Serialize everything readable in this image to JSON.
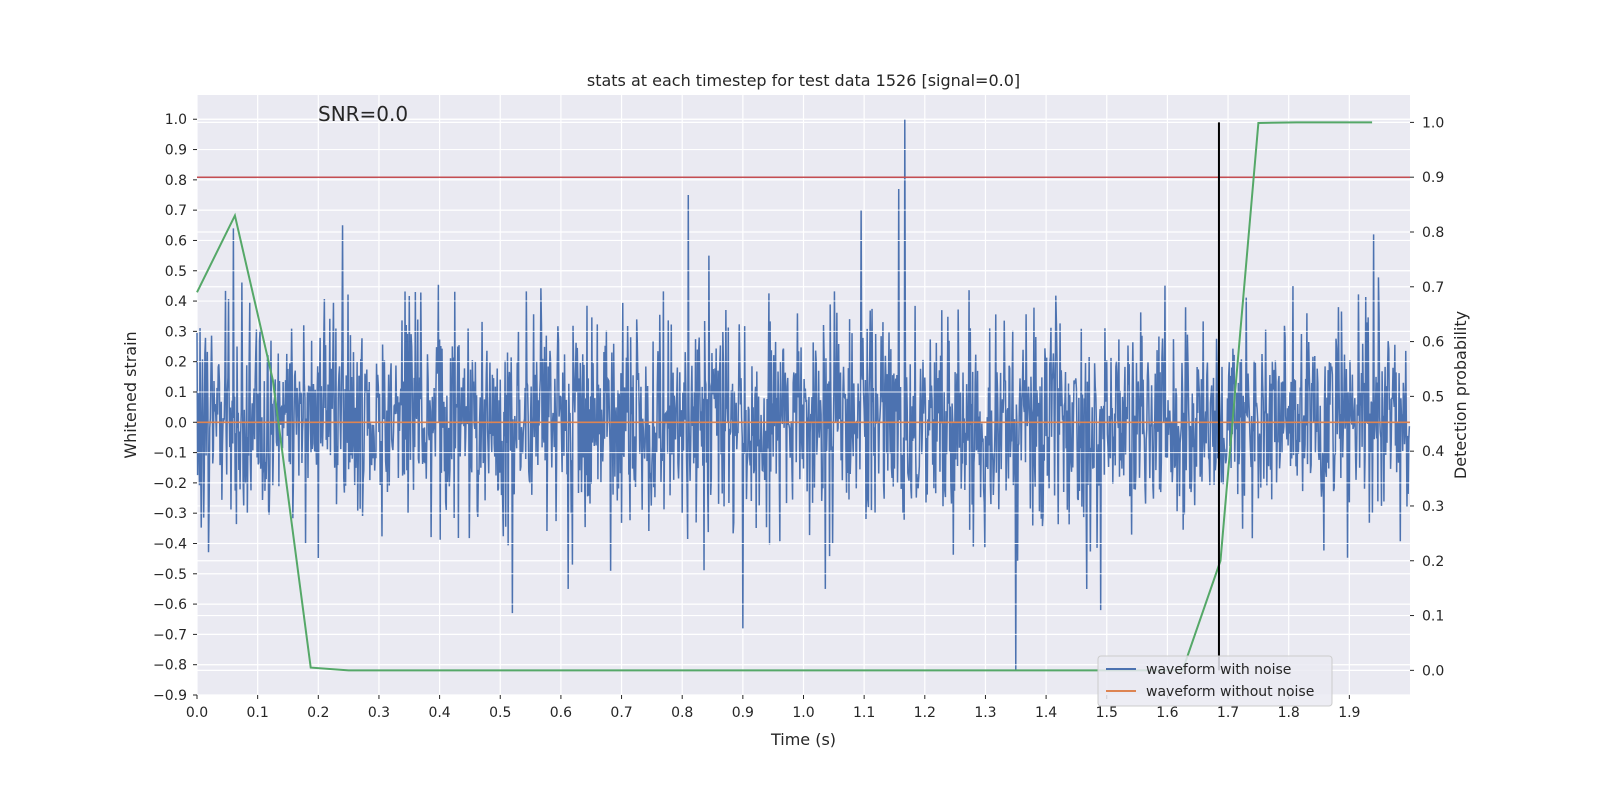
{
  "chart_data": {
    "type": "line",
    "title": "stats at each timestep for test data 1526 [signal=0.0]",
    "annotation": "SNR=0.0",
    "xlabel": "Time (s)",
    "ylabel": "Whitened strain",
    "y2label": "Detection probability",
    "xlim": [
      0.0,
      2.0
    ],
    "ylim": [
      -0.9,
      1.08
    ],
    "y2lim": [
      -0.045,
      1.05
    ],
    "grid": true,
    "legend_position": "lower-right",
    "x_ticks": [
      "0.0",
      "0.1",
      "0.2",
      "0.3",
      "0.4",
      "0.5",
      "0.6",
      "0.7",
      "0.8",
      "0.9",
      "1.0",
      "1.1",
      "1.2",
      "1.3",
      "1.4",
      "1.5",
      "1.6",
      "1.7",
      "1.8",
      "1.9"
    ],
    "y_ticks": [
      "1.0",
      "0.9",
      "0.8",
      "0.7",
      "0.6",
      "0.5",
      "0.4",
      "0.3",
      "0.2",
      "0.1",
      "0.0",
      "−0.1",
      "−0.2",
      "−0.3",
      "−0.4",
      "−0.5",
      "−0.6",
      "−0.7",
      "−0.8",
      "−0.9"
    ],
    "y2_ticks": [
      "1.0",
      "0.9",
      "0.8",
      "0.7",
      "0.6",
      "0.5",
      "0.4",
      "0.3",
      "0.2",
      "0.1",
      "0.0"
    ],
    "series": [
      {
        "name": "waveform with noise",
        "color": "#4c72b0",
        "sample_count": 2000,
        "seed": 1526,
        "amplitude_sd": 0.17,
        "peaks": [
          {
            "x": 1.167,
            "y": 1.0
          },
          {
            "x": 1.35,
            "y": -0.82
          },
          {
            "x": 0.81,
            "y": 0.75
          },
          {
            "x": 1.157,
            "y": 0.77
          },
          {
            "x": 0.9,
            "y": -0.68
          },
          {
            "x": 1.095,
            "y": 0.7
          },
          {
            "x": 0.52,
            "y": -0.63
          },
          {
            "x": 0.06,
            "y": 0.64
          },
          {
            "x": 1.49,
            "y": -0.62
          },
          {
            "x": 1.94,
            "y": 0.62
          },
          {
            "x": 0.24,
            "y": 0.65
          }
        ]
      },
      {
        "name": "waveform without noise",
        "color": "#dd8452",
        "x": [
          0.0,
          2.0
        ],
        "y": [
          0.0,
          0.0
        ]
      },
      {
        "name": "detection probability",
        "color": "#55a868",
        "axis": "right",
        "x": [
          0.0,
          0.0625,
          0.125,
          0.1875,
          0.25,
          0.3125,
          0.375,
          0.4375,
          0.5,
          0.5625,
          0.625,
          0.6875,
          0.75,
          0.8125,
          0.875,
          0.9375,
          1.0,
          1.0625,
          1.125,
          1.1875,
          1.25,
          1.3125,
          1.375,
          1.4375,
          1.5,
          1.5625,
          1.625,
          1.6875,
          1.75,
          1.8125,
          1.875,
          1.9375
        ],
        "y": [
          0.69,
          0.83,
          0.53,
          0.005,
          0.0,
          0.0,
          0.0,
          0.0,
          0.0,
          0.0,
          0.0,
          0.0,
          0.0,
          0.0,
          0.0,
          0.0,
          0.0,
          0.0,
          0.0,
          0.0,
          0.0,
          0.0,
          0.0,
          0.0,
          0.0,
          0.0,
          0.0,
          0.2,
          0.999,
          1.0,
          1.0,
          1.0
        ]
      }
    ],
    "threshold": {
      "axis": "right",
      "value": 0.9,
      "color": "#c44e52"
    },
    "vline": {
      "x": 1.685,
      "ymin": 0.0,
      "ymax": 1.0,
      "axis": "right",
      "color": "#000000"
    }
  }
}
